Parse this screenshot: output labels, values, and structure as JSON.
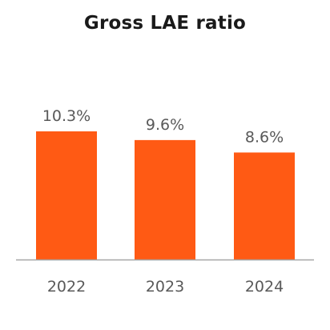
{
  "chart_data": {
    "type": "bar",
    "title": "Gross LAE ratio",
    "categories": [
      "2022",
      "2023",
      "2024"
    ],
    "values": [
      10.3,
      9.6,
      8.6
    ],
    "data_labels": [
      "10.3%",
      "9.6%",
      "8.6%"
    ],
    "ylim": [
      0,
      10.3
    ],
    "grid": false,
    "legend": "none",
    "bar_color": "#FF5A14",
    "axis_color": "#A6A6A6"
  }
}
